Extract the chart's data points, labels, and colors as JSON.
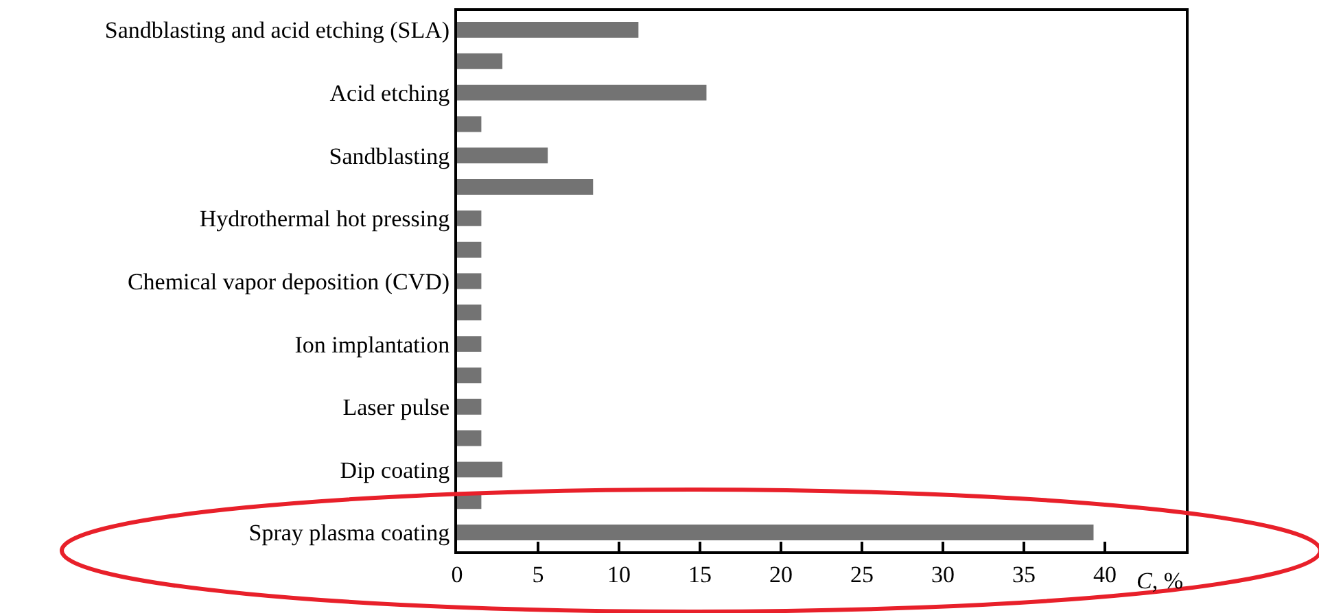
{
  "chart_data": {
    "type": "bar",
    "orientation": "horizontal",
    "categories": [
      "Sandblasting and acid etching (SLA)",
      null,
      "Acid etching",
      null,
      "Sandblasting",
      null,
      "Hydrothermal hot pressing",
      null,
      "Chemical vapor deposition (CVD)",
      null,
      "Ion implantation",
      null,
      "Laser pulse",
      null,
      "Dip coating",
      null,
      "Spray plasma coating"
    ],
    "values": [
      11.2,
      2.8,
      15.4,
      1.5,
      5.6,
      8.4,
      1.5,
      1.5,
      1.5,
      1.5,
      1.5,
      1.5,
      1.5,
      1.5,
      2.8,
      1.5,
      39.3
    ],
    "color": "#737373",
    "xlabel": "C, %",
    "xlim": [
      0,
      45
    ],
    "xticks": [
      0,
      5,
      10,
      15,
      20,
      25,
      30,
      35,
      40
    ]
  }
}
